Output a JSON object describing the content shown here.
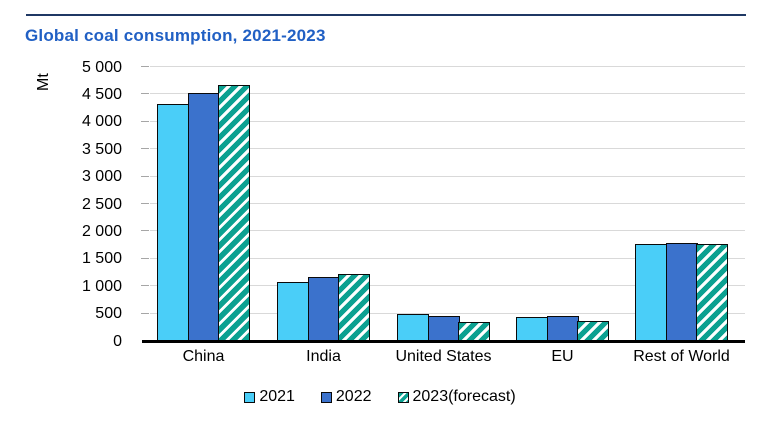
{
  "header": {
    "title": "Global coal consumption, 2021-2023"
  },
  "chart_data": {
    "type": "bar",
    "title": "Global coal consumption, 2021-2023",
    "ylabel": "Mt",
    "xlabel": "",
    "categories": [
      "China",
      "India",
      "United States",
      "EU",
      "Rest of World"
    ],
    "series": [
      {
        "name": "2021",
        "color": "#4ACEF8",
        "hatch": false,
        "values": [
          4320,
          1070,
          490,
          440,
          1770
        ]
      },
      {
        "name": "2022",
        "color": "#3B72CC",
        "hatch": false,
        "values": [
          4520,
          1160,
          455,
          450,
          1785
        ]
      },
      {
        "name": "2023(forecast)",
        "color": "#0CA191",
        "hatch": true,
        "values": [
          4680,
          1230,
          355,
          360,
          1775
        ]
      }
    ],
    "ylim": [
      0,
      5000
    ],
    "ytick_step": 500,
    "ytick_labels": [
      "0",
      "500",
      "1 000",
      "1 500",
      "2 000",
      "2 500",
      "3 000",
      "3 500",
      "4 000",
      "4 500",
      "5 000"
    ],
    "grid": "horizontal gridlines on, light gray",
    "legend_position": "bottom"
  },
  "colors": {
    "title_text": "#2160C4",
    "top_rule": "#1F3864",
    "gridline": "#D9D9D9",
    "axis_line": "#000000",
    "bar_border": "#0A0A0A",
    "series_2021": "#4ACEF8",
    "series_2022": "#3B72CC",
    "series_2023": "#0CA191",
    "background": "#FFFFFF"
  }
}
